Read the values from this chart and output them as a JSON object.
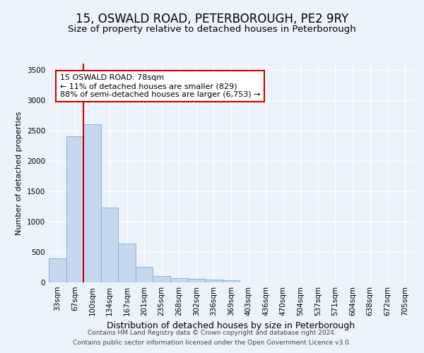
{
  "title": "15, OSWALD ROAD, PETERBOROUGH, PE2 9RY",
  "subtitle": "Size of property relative to detached houses in Peterborough",
  "xlabel": "Distribution of detached houses by size in Peterborough",
  "ylabel": "Number of detached properties",
  "footnote1": "Contains HM Land Registry data © Crown copyright and database right 2024.",
  "footnote2": "Contains public sector information licensed under the Open Government Licence v3.0.",
  "categories": [
    "33sqm",
    "67sqm",
    "100sqm",
    "134sqm",
    "167sqm",
    "201sqm",
    "235sqm",
    "268sqm",
    "302sqm",
    "336sqm",
    "369sqm",
    "403sqm",
    "436sqm",
    "470sqm",
    "504sqm",
    "537sqm",
    "571sqm",
    "604sqm",
    "638sqm",
    "672sqm",
    "705sqm"
  ],
  "values": [
    400,
    2400,
    2600,
    1230,
    640,
    260,
    105,
    65,
    55,
    45,
    40,
    0,
    0,
    0,
    0,
    0,
    0,
    0,
    0,
    0,
    0
  ],
  "bar_color": "#c5d8f0",
  "bar_edge_color": "#7aaed4",
  "vline_color": "#cc0000",
  "vline_x": 1.5,
  "annotation_line1": "15 OSWALD ROAD: 78sqm",
  "annotation_line2": "← 11% of detached houses are smaller (829)",
  "annotation_line3": "88% of semi-detached houses are larger (6,753) →",
  "annotation_box_color": "#ffffff",
  "annotation_box_edge": "#cc0000",
  "ylim": [
    0,
    3600
  ],
  "yticks": [
    0,
    500,
    1000,
    1500,
    2000,
    2500,
    3000,
    3500
  ],
  "bg_color": "#edf3fb",
  "plot_bg_color": "#edf3fb",
  "grid_color": "#ffffff",
  "title_fontsize": 12,
  "subtitle_fontsize": 9.5,
  "ylabel_fontsize": 8,
  "xlabel_fontsize": 9,
  "tick_fontsize": 7.5,
  "footnote_fontsize": 6.5
}
